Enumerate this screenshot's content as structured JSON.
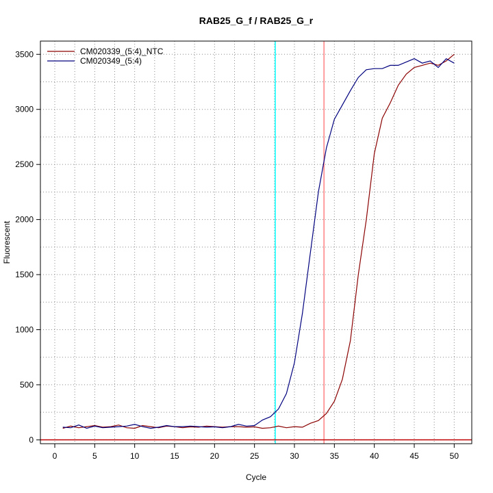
{
  "chart_data": {
    "type": "line",
    "title": "RAB25_G_f / RAB25_G_r",
    "xlabel": "Cycle",
    "ylabel": "Fluorescent",
    "xlim": [
      -1.8,
      52.2
    ],
    "ylim": [
      -35,
      3620
    ],
    "x_ticks": [
      0,
      5,
      10,
      15,
      20,
      25,
      30,
      35,
      40,
      45,
      50
    ],
    "y_ticks": [
      0,
      500,
      1000,
      1500,
      2000,
      2500,
      3000,
      3500
    ],
    "grid": true,
    "legend_position": "top-left",
    "x": [
      1,
      2,
      3,
      4,
      5,
      6,
      7,
      8,
      9,
      10,
      11,
      12,
      13,
      14,
      15,
      16,
      17,
      18,
      19,
      20,
      21,
      22,
      23,
      24,
      25,
      26,
      27,
      28,
      29,
      30,
      31,
      32,
      33,
      34,
      35,
      36,
      37,
      38,
      39,
      40,
      41,
      42,
      43,
      44,
      45,
      46,
      47,
      48,
      49,
      50
    ],
    "series": [
      {
        "name": "CM020339_(5:4)_NTC",
        "color": "#8b0000",
        "values": [
          105,
          125,
          110,
          120,
          130,
          115,
          120,
          135,
          110,
          105,
          130,
          120,
          110,
          125,
          120,
          110,
          118,
          115,
          125,
          120,
          115,
          120,
          120,
          115,
          118,
          105,
          110,
          125,
          110,
          120,
          115,
          150,
          175,
          240,
          350,
          550,
          900,
          1500,
          2000,
          2600,
          2920,
          3060,
          3220,
          3320,
          3380,
          3400,
          3420,
          3400,
          3440,
          3500
        ]
      },
      {
        "name": "CM020349_(5:4)",
        "color": "#00007f",
        "values": [
          115,
          110,
          135,
          105,
          125,
          110,
          115,
          120,
          125,
          140,
          120,
          105,
          115,
          130,
          120,
          120,
          125,
          120,
          115,
          118,
          110,
          120,
          140,
          125,
          130,
          180,
          210,
          280,
          420,
          700,
          1150,
          1700,
          2250,
          2650,
          2910,
          3040,
          3170,
          3290,
          3360,
          3370,
          3370,
          3400,
          3400,
          3430,
          3460,
          3420,
          3440,
          3380,
          3460,
          3420
        ]
      }
    ],
    "vertical_markers": [
      {
        "x": 27.6,
        "color": "#00ffff"
      },
      {
        "x": 33.7,
        "color": "#ff8080"
      }
    ],
    "horizontal_markers": [
      {
        "y": 0,
        "color": "#c00000"
      }
    ]
  }
}
